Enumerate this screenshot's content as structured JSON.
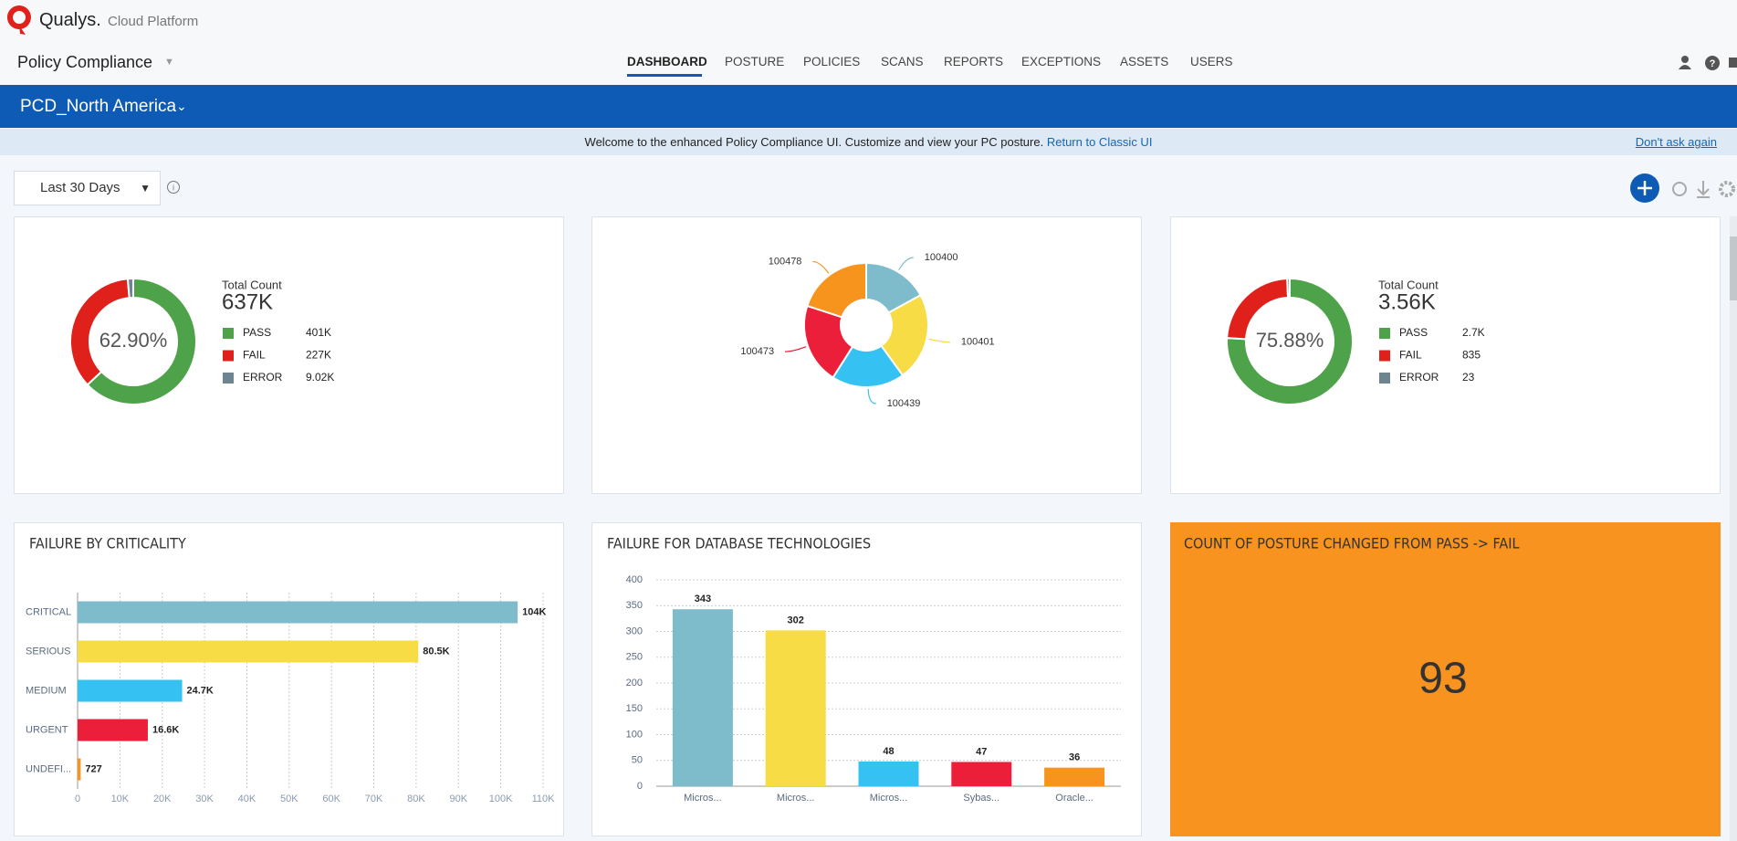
{
  "header": {
    "brand": "Qualys.",
    "product": "Cloud Platform",
    "app": "Policy Compliance",
    "nav": [
      "DASHBOARD",
      "POSTURE",
      "POLICIES",
      "SCANS",
      "REPORTS",
      "EXCEPTIONS",
      "ASSETS",
      "USERS"
    ],
    "active_nav": 0
  },
  "subheader": {
    "dashboard": "PCD_North America"
  },
  "banner": {
    "message": "Welcome to the enhanced Policy Compliance UI. Customize and view your PC posture.",
    "link": "Return to Classic UI",
    "dismiss": "Don't ask again"
  },
  "toolbar": {
    "date_range": "Last 30 Days"
  },
  "chart_data": [
    {
      "type": "donut",
      "center_label": "62.90%",
      "total_label": "Total Count",
      "total": {
        "value": 637000,
        "label": "637K"
      },
      "categories": [
        "PASS",
        "FAIL",
        "ERROR"
      ],
      "values": [
        401000,
        227000,
        9020
      ],
      "value_labels": [
        "401K",
        "227K",
        "9.02K"
      ],
      "colors": [
        "#4ea24a",
        "#e0201b",
        "#6d8591"
      ]
    },
    {
      "type": "pie",
      "categories": [
        "100400",
        "100401",
        "100439",
        "100473",
        "100478"
      ],
      "values": [
        17,
        23,
        19,
        21,
        20
      ],
      "colors": [
        "#7fbccb",
        "#f7dc45",
        "#35c1f1",
        "#eb1f3a",
        "#f7941d"
      ]
    },
    {
      "type": "donut",
      "center_label": "75.88%",
      "total_label": "Total Count",
      "total": {
        "value": 3560,
        "label": "3.56K"
      },
      "categories": [
        "PASS",
        "FAIL",
        "ERROR"
      ],
      "values": [
        2700,
        835,
        23
      ],
      "value_labels": [
        "2.7K",
        "835",
        "23"
      ],
      "colors": [
        "#4ea24a",
        "#e0201b",
        "#6d8591"
      ]
    },
    {
      "type": "hbar",
      "title": "FAILURE BY CRITICALITY",
      "categories": [
        "CRITICAL",
        "SERIOUS",
        "MEDIUM",
        "URGENT",
        "UNDEFI..."
      ],
      "values": [
        104000,
        80500,
        24700,
        16600,
        727
      ],
      "value_labels": [
        "104K",
        "80.5K",
        "24.7K",
        "16.6K",
        "727"
      ],
      "colors": [
        "#7fbccb",
        "#f7dc45",
        "#35c1f1",
        "#eb1f3a",
        "#f7941d"
      ],
      "xlim": [
        0,
        110000
      ],
      "xticks": [
        0,
        {
          "value": 10000,
          "label": "10K"
        },
        {
          "value": 20000,
          "label": "20K"
        },
        {
          "value": 30000,
          "label": "30K"
        },
        {
          "value": 40000,
          "label": "40K"
        },
        {
          "value": 50000,
          "label": "50K"
        },
        {
          "value": 60000,
          "label": "60K"
        },
        {
          "value": 70000,
          "label": "70K"
        },
        {
          "value": 80000,
          "label": "80K"
        },
        {
          "value": 90000,
          "label": "90K"
        },
        {
          "value": 100000,
          "label": "100K"
        },
        {
          "value": 110000,
          "label": "110K"
        }
      ],
      "grid": true
    },
    {
      "type": "bar",
      "title": "FAILURE FOR DATABASE TECHNOLOGIES",
      "categories": [
        "Micros...",
        "Micros...",
        "Micros...",
        "Sybas...",
        "Oracle..."
      ],
      "values": [
        343,
        302,
        48,
        47,
        36
      ],
      "colors": [
        "#7fbccb",
        "#f7dc45",
        "#35c1f1",
        "#eb1f3a",
        "#f7941d"
      ],
      "ylim": [
        0,
        400
      ],
      "yticks": [
        0,
        50,
        100,
        150,
        200,
        250,
        300,
        350,
        400
      ],
      "grid": true
    },
    {
      "type": "kpi",
      "title": "COUNT OF POSTURE CHANGED FROM PASS -> FAIL",
      "value": 93,
      "color": "#f7931e"
    }
  ]
}
